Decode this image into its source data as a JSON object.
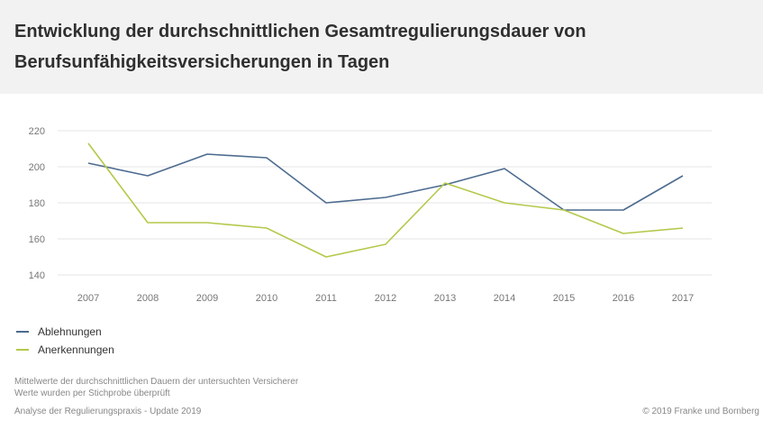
{
  "chart_data": {
    "type": "line",
    "title": "Entwicklung der durchschnittlichen Gesamtregulierungsdauer von Berufsunfähigkeitsversicherungen in Tagen",
    "categories": [
      "2007",
      "2008",
      "2009",
      "2010",
      "2011",
      "2012",
      "2013",
      "2014",
      "2015",
      "2016",
      "2017"
    ],
    "ylim": [
      140,
      220
    ],
    "yticks": [
      140,
      160,
      180,
      200,
      220
    ],
    "grid": true,
    "legend_position": "bottom-left",
    "series": [
      {
        "name": "Ablehnungen",
        "color": "#4d6b8f",
        "values": [
          202,
          195,
          207,
          205,
          180,
          183,
          190,
          199,
          176,
          176,
          195
        ]
      },
      {
        "name": "Anerkennungen",
        "color": "#b5c84a",
        "values": [
          213,
          169,
          169,
          166,
          150,
          157,
          191,
          180,
          176,
          163,
          166
        ]
      }
    ]
  },
  "notes": [
    "Mittelwerte der durchschnittlichen Dauern der untersuchten Versicherer",
    "Werte wurden per Stichprobe überprüft"
  ],
  "source": "Analyse der Regulierungspraxis - Update 2019",
  "copyright": "© 2019 Franke und Bornberg"
}
